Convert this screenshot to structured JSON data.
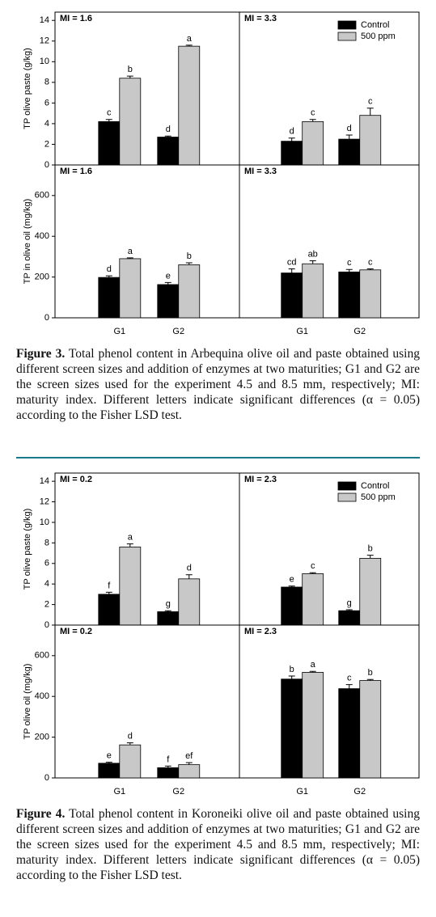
{
  "chart_data": [
    {
      "type": "bar",
      "label": "MI = 1.6",
      "ylabel": "TP olive paste (g/kg)",
      "ylim": [
        0,
        14.8
      ],
      "yticks": [
        0,
        2,
        4,
        6,
        8,
        10,
        12,
        14
      ],
      "categories": [
        null,
        null
      ],
      "series": [
        {
          "color": "#000000",
          "values": [
            4.2,
            2.7
          ],
          "errors": [
            0.2,
            0.1
          ],
          "letters": [
            "c",
            "d"
          ]
        },
        {
          "color": "#c8c8c8",
          "values": [
            8.4,
            11.5
          ],
          "errors": [
            0.2,
            0.1
          ],
          "letters": [
            "b",
            "a"
          ]
        }
      ]
    },
    {
      "type": "bar",
      "label": "MI = 3.3",
      "ylim": [
        0,
        14.8
      ],
      "categories": [
        null,
        null
      ],
      "legend": "upper right",
      "series": [
        {
          "name": "Control",
          "color": "#000000",
          "values": [
            2.3,
            2.5
          ],
          "errors": [
            0.3,
            0.4
          ],
          "letters": [
            "d",
            "d"
          ]
        },
        {
          "name": "500 ppm",
          "color": "#c8c8c8",
          "values": [
            4.2,
            4.8
          ],
          "errors": [
            0.2,
            0.7
          ],
          "letters": [
            "c",
            "c"
          ]
        }
      ]
    },
    {
      "type": "bar",
      "label": "MI = 1.6",
      "ylabel": "TP in olive oil (mg/kg)",
      "ylim": [
        0,
        750
      ],
      "yticks": [
        0,
        200,
        400,
        600
      ],
      "categories": [
        "G1",
        "G2"
      ],
      "series": [
        {
          "color": "#000000",
          "values": [
            198,
            163
          ],
          "errors": [
            8,
            10
          ],
          "letters": [
            "d",
            "e"
          ]
        },
        {
          "color": "#c8c8c8",
          "values": [
            290,
            260
          ],
          "errors": [
            4,
            10
          ],
          "letters": [
            "a",
            "b"
          ]
        }
      ]
    },
    {
      "type": "bar",
      "label": "MI = 3.3",
      "ylim": [
        0,
        750
      ],
      "categories": [
        "G1",
        "G2"
      ],
      "series": [
        {
          "color": "#000000",
          "values": [
            220,
            225
          ],
          "errors": [
            20,
            12
          ],
          "letters": [
            "cd",
            "c"
          ]
        },
        {
          "color": "#c8c8c8",
          "values": [
            265,
            235
          ],
          "errors": [
            15,
            5
          ],
          "letters": [
            "ab",
            "c"
          ]
        }
      ]
    },
    {
      "type": "bar",
      "label": "MI = 0.2",
      "ylabel": "TP olive paste (g/kg)",
      "ylim": [
        0,
        14.8
      ],
      "yticks": [
        0,
        2,
        4,
        6,
        8,
        10,
        12,
        14
      ],
      "categories": [
        null,
        null
      ],
      "series": [
        {
          "color": "#000000",
          "values": [
            3.0,
            1.3
          ],
          "errors": [
            0.2,
            0.1
          ],
          "letters": [
            "f",
            "g"
          ]
        },
        {
          "color": "#c8c8c8",
          "values": [
            7.6,
            4.5
          ],
          "errors": [
            0.3,
            0.4
          ],
          "letters": [
            "a",
            "d"
          ]
        }
      ]
    },
    {
      "type": "bar",
      "label": "MI = 2.3",
      "ylim": [
        0,
        14.8
      ],
      "categories": [
        null,
        null
      ],
      "legend": "upper right",
      "series": [
        {
          "name": "Control",
          "color": "#000000",
          "values": [
            3.7,
            1.4
          ],
          "errors": [
            0.1,
            0.1
          ],
          "letters": [
            "e",
            "g"
          ]
        },
        {
          "name": "500 ppm",
          "color": "#c8c8c8",
          "values": [
            5.0,
            6.5
          ],
          "errors": [
            0.1,
            0.3
          ],
          "letters": [
            "c",
            "b"
          ]
        }
      ]
    },
    {
      "type": "bar",
      "label": "MI = 0.2",
      "ylabel": "TP olive oil (mg/kg)",
      "ylim": [
        0,
        750
      ],
      "yticks": [
        0,
        200,
        400,
        600
      ],
      "categories": [
        "G1",
        "G2"
      ],
      "series": [
        {
          "color": "#000000",
          "values": [
            72,
            50
          ],
          "errors": [
            5,
            8
          ],
          "letters": [
            "e",
            "f"
          ]
        },
        {
          "color": "#c8c8c8",
          "values": [
            162,
            65
          ],
          "errors": [
            10,
            10
          ],
          "letters": [
            "d",
            "ef"
          ]
        }
      ]
    },
    {
      "type": "bar",
      "label": "MI = 2.3",
      "ylim": [
        0,
        750
      ],
      "categories": [
        "G1",
        "G2"
      ],
      "series": [
        {
          "color": "#000000",
          "values": [
            485,
            438
          ],
          "errors": [
            15,
            20
          ],
          "letters": [
            "b",
            "c"
          ]
        },
        {
          "color": "#c8c8c8",
          "values": [
            518,
            478
          ],
          "errors": [
            5,
            5
          ],
          "letters": [
            "a",
            "b"
          ]
        }
      ]
    }
  ],
  "captions": [
    {
      "label": "Figure 3.",
      "text": "Total phenol content in Arbequina olive oil and paste obtained using different screen sizes and addition of enzymes at two maturities; G1 and G2 are the screen sizes used for the experiment 4.5 and 8.5 mm, respectively; MI: maturity index. Different letters indicate significant differences (α = 0.05) according to the Fisher LSD test."
    },
    {
      "label": "Figure 4.",
      "text": "Total phenol content in Koroneiki olive oil and paste obtained using different screen sizes and addition of enzymes at two maturities; G1 and G2 are the screen sizes used for the experiment 4.5 and 8.5 mm, respectively; MI: maturity index. Different letters indicate significant differences (α = 0.05) according to the Fisher LSD test."
    }
  ]
}
